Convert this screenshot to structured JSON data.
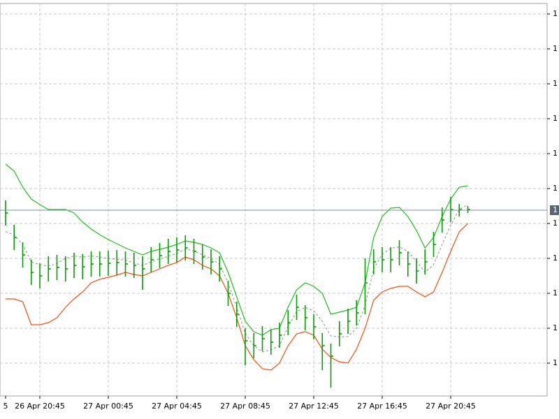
{
  "chart_data": {
    "type": "ohlc",
    "categories": [
      "5",
      null,
      null,
      null,
      "26 Apr 20:45",
      null,
      null,
      null,
      null,
      null,
      null,
      null,
      "27 Apr 00:45",
      null,
      null,
      null,
      null,
      null,
      null,
      null,
      "27 Apr 04:45",
      null,
      null,
      null,
      null,
      null,
      null,
      null,
      "27 Apr 08:45",
      null,
      null,
      null,
      null,
      null,
      null,
      null,
      "27 Apr 12:45",
      null,
      null,
      null,
      null,
      null,
      null,
      null,
      "27 Apr 16:45",
      null,
      null,
      null,
      null,
      null,
      null,
      null,
      "27 Apr 20:45",
      null,
      null
    ],
    "close": [
      4.3,
      3.6,
      3.1,
      2.6,
      2.5,
      2.7,
      2.74,
      2.7,
      2.8,
      2.76,
      2.84,
      2.84,
      2.86,
      2.88,
      2.84,
      2.8,
      2.7,
      2.96,
      3.08,
      3.2,
      3.24,
      3.3,
      3.2,
      3.04,
      2.9,
      2.7,
      2.0,
      1.4,
      0.64,
      0.5,
      0.7,
      0.6,
      0.8,
      1.16,
      1.6,
      1.3,
      1.04,
      0.5,
      0.2,
      0.84,
      1.2,
      1.44,
      2.3,
      2.9,
      2.96,
      2.96,
      3.16,
      2.84,
      2.64,
      2.9,
      3.4,
      4.1,
      4.4,
      4.4,
      4.4
    ],
    "high": [
      4.66,
      3.96,
      3.46,
      2.96,
      2.86,
      3.06,
      3.1,
      3.06,
      3.16,
      3.12,
      3.2,
      3.2,
      3.22,
      3.24,
      3.2,
      3.16,
      3.06,
      3.32,
      3.44,
      3.56,
      3.6,
      3.66,
      3.56,
      3.4,
      3.26,
      3.06,
      2.36,
      1.76,
      1.0,
      0.86,
      1.06,
      0.96,
      1.16,
      1.52,
      1.96,
      1.66,
      1.4,
      0.86,
      0.56,
      1.2,
      1.56,
      1.8,
      3.0,
      3.26,
      3.32,
      3.32,
      3.52,
      3.2,
      3.0,
      3.26,
      3.76,
      4.46,
      4.76,
      4.56,
      4.5
    ],
    "low": [
      3.94,
      3.24,
      2.74,
      2.24,
      2.14,
      2.34,
      2.38,
      2.34,
      2.44,
      2.4,
      2.48,
      2.48,
      2.5,
      2.52,
      2.48,
      2.44,
      2.1,
      2.6,
      2.72,
      2.84,
      2.88,
      2.94,
      2.84,
      2.68,
      2.54,
      2.34,
      1.64,
      1.04,
      -0.06,
      0.14,
      0.34,
      0.24,
      0.44,
      0.8,
      1.24,
      0.94,
      0.68,
      -0.2,
      -0.7,
      0.48,
      0.84,
      1.08,
      1.4,
      2.54,
      2.6,
      2.6,
      2.8,
      2.48,
      2.28,
      2.54,
      3.04,
      3.74,
      4.04,
      4.2,
      4.3
    ],
    "bar_color": "#00a000",
    "bands": [
      {
        "values": [
          5.7,
          5.5,
          5.04,
          4.7,
          4.54,
          4.4,
          4.4,
          4.4,
          4.3,
          4.04,
          3.84,
          3.68,
          3.54,
          3.42,
          3.3,
          3.2,
          3.1,
          3.2,
          3.26,
          3.32,
          3.4,
          3.5,
          3.46,
          3.4,
          3.3,
          3.16,
          2.6,
          1.9,
          1.2,
          0.9,
          0.8,
          0.96,
          1.0,
          1.6,
          2.1,
          2.3,
          2.2,
          2.0,
          1.4,
          1.46,
          1.52,
          1.6,
          2.3,
          3.6,
          4.2,
          4.44,
          4.46,
          4.2,
          3.8,
          3.3,
          3.6,
          4.2,
          4.7,
          5.04,
          5.08
        ],
        "color": "#20c020",
        "dashed": false
      },
      {
        "values": [
          3.77,
          3.67,
          3.4,
          2.9,
          2.82,
          2.78,
          2.85,
          3.0,
          3.07,
          3.04,
          3.07,
          3.04,
          3.0,
          2.97,
          2.95,
          2.87,
          2.8,
          2.9,
          2.98,
          3.06,
          3.14,
          3.27,
          3.21,
          3.1,
          3.0,
          2.83,
          2.3,
          1.6,
          0.85,
          0.5,
          0.32,
          0.38,
          0.5,
          1.05,
          1.47,
          1.6,
          1.5,
          1.2,
          0.78,
          0.75,
          0.76,
          1.0,
          1.65,
          2.7,
          3.12,
          3.29,
          3.33,
          3.2,
          2.92,
          2.6,
          2.82,
          3.4,
          3.95,
          4.4,
          4.54
        ],
        "color": "#a0a0a0",
        "dashed": true
      },
      {
        "values": [
          1.84,
          1.84,
          1.76,
          1.1,
          1.1,
          1.16,
          1.3,
          1.6,
          1.84,
          2.04,
          2.3,
          2.4,
          2.46,
          2.52,
          2.6,
          2.54,
          2.5,
          2.6,
          2.7,
          2.8,
          2.88,
          3.04,
          2.96,
          2.8,
          2.7,
          2.5,
          2.0,
          1.3,
          0.5,
          0.1,
          -0.16,
          -0.2,
          0.0,
          0.5,
          0.84,
          0.9,
          0.8,
          0.4,
          0.16,
          0.04,
          0.0,
          0.4,
          1.0,
          1.8,
          2.04,
          2.14,
          2.2,
          2.2,
          2.04,
          1.9,
          2.04,
          2.6,
          3.2,
          3.76,
          4.0
        ],
        "color": "#ff4a10",
        "dashed": false
      }
    ],
    "ylim": [
      -0.94,
      10.3
    ],
    "yticks": [
      {
        "value": 0,
        "label": "1"
      },
      {
        "value": 1,
        "label": "1"
      },
      {
        "value": 2,
        "label": "1"
      },
      {
        "value": 3,
        "label": "1"
      },
      {
        "value": 4,
        "label": "1"
      },
      {
        "value": 5,
        "label": "1"
      },
      {
        "value": 6,
        "label": "1"
      },
      {
        "value": 7,
        "label": "1"
      },
      {
        "value": 8,
        "label": "1"
      },
      {
        "value": 9,
        "label": "1"
      },
      {
        "value": 10,
        "label": "1"
      }
    ],
    "current_price": {
      "value": 4.38,
      "label": "1"
    },
    "grid": true
  }
}
